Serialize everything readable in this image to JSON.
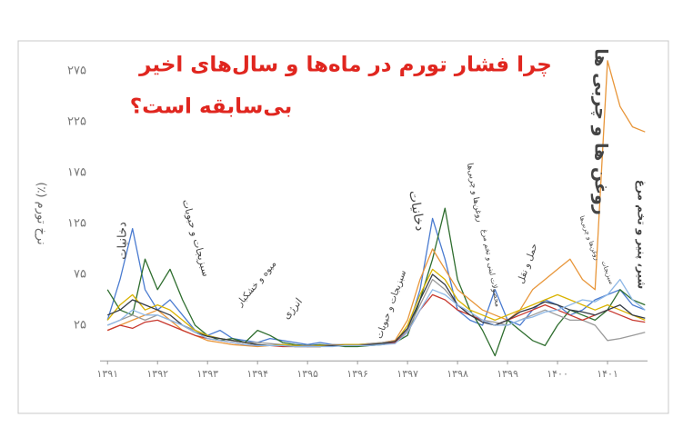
{
  "chart_data": {
    "type": "line",
    "title": [
      "چرا فشار تورم در ماه‌ها و سال‌های اخیر",
      "بی‌سابقه است؟"
    ],
    "ylabel": "نرخ تورم (٪)",
    "annotations": [
      "دخانیات",
      "سبزیجات و حبوبات",
      "میوه و خشکبار",
      "انرژی",
      "سبزیجات و حبوبات",
      "دخانیات",
      "روغن‌ها و چربی‌ها",
      "محصولات لبنی و تخم مرغ",
      "حمل و نقل",
      "روغن‌ها و چربی‌ها",
      "سبزیجات",
      "روغن ها و چربی ها",
      "شیر، پنیر و تخم مرغ"
    ],
    "x": [
      1391,
      1391.25,
      1391.5,
      1391.75,
      1392,
      1392.25,
      1392.5,
      1392.75,
      1393,
      1393.25,
      1393.5,
      1393.75,
      1394,
      1394.25,
      1394.5,
      1394.75,
      1395,
      1395.25,
      1395.5,
      1395.75,
      1396,
      1396.25,
      1396.5,
      1396.75,
      1397,
      1397.25,
      1397.5,
      1397.75,
      1398,
      1398.25,
      1398.5,
      1398.75,
      1399,
      1399.25,
      1399.5,
      1399.75,
      1400,
      1400.25,
      1400.5,
      1400.75,
      1401,
      1401.25,
      1401.5,
      1401.75
    ],
    "series": [
      {
        "color": "#4a7bd0",
        "values": [
          30,
          70,
          120,
          60,
          40,
          50,
          35,
          20,
          15,
          20,
          12,
          10,
          8,
          12,
          10,
          8,
          6,
          8,
          6,
          5,
          5,
          6,
          8,
          10,
          20,
          60,
          130,
          90,
          40,
          30,
          25,
          60,
          30,
          25,
          40,
          50,
          45,
          35,
          40,
          50,
          55,
          60,
          45,
          40
        ]
      },
      {
        "color": "#2f6e2f",
        "values": [
          60,
          40,
          35,
          90,
          60,
          80,
          50,
          25,
          15,
          10,
          12,
          8,
          20,
          15,
          8,
          6,
          5,
          6,
          5,
          4,
          4,
          5,
          6,
          8,
          15,
          50,
          90,
          140,
          70,
          40,
          20,
          -5,
          30,
          20,
          10,
          5,
          25,
          40,
          35,
          30,
          40,
          60,
          50,
          45
        ]
      },
      {
        "color": "#e8963a",
        "values": [
          20,
          25,
          30,
          35,
          40,
          30,
          20,
          15,
          10,
          8,
          6,
          5,
          4,
          5,
          6,
          5,
          4,
          4,
          5,
          6,
          6,
          7,
          8,
          10,
          30,
          70,
          100,
          80,
          60,
          50,
          40,
          35,
          30,
          40,
          60,
          70,
          80,
          90,
          70,
          60,
          285,
          240,
          220,
          215
        ]
      },
      {
        "color": "#9a9a9a",
        "values": [
          25,
          30,
          35,
          30,
          35,
          30,
          25,
          20,
          15,
          12,
          10,
          8,
          8,
          7,
          6,
          5,
          5,
          5,
          6,
          6,
          6,
          7,
          8,
          9,
          20,
          45,
          70,
          60,
          45,
          35,
          30,
          28,
          25,
          30,
          35,
          40,
          35,
          30,
          30,
          25,
          10,
          12,
          15,
          18
        ]
      },
      {
        "color": "#d9b300",
        "values": [
          30,
          45,
          55,
          40,
          45,
          40,
          30,
          20,
          15,
          12,
          10,
          8,
          6,
          5,
          6,
          5,
          4,
          5,
          5,
          6,
          6,
          6,
          7,
          8,
          25,
          55,
          80,
          70,
          50,
          40,
          35,
          30,
          35,
          40,
          45,
          50,
          55,
          50,
          45,
          40,
          45,
          40,
          35,
          30
        ]
      },
      {
        "color": "#c8382e",
        "values": [
          20,
          25,
          22,
          28,
          30,
          25,
          20,
          15,
          12,
          10,
          8,
          6,
          5,
          5,
          4,
          4,
          4,
          4,
          5,
          5,
          5,
          6,
          6,
          8,
          18,
          40,
          55,
          50,
          40,
          35,
          30,
          25,
          30,
          35,
          40,
          45,
          40,
          35,
          30,
          35,
          40,
          35,
          30,
          28
        ]
      },
      {
        "color": "#333a45",
        "values": [
          35,
          40,
          50,
          45,
          40,
          35,
          25,
          18,
          14,
          12,
          10,
          8,
          6,
          5,
          5,
          4,
          4,
          4,
          5,
          5,
          5,
          6,
          7,
          9,
          22,
          50,
          75,
          65,
          45,
          35,
          28,
          25,
          30,
          38,
          42,
          48,
          45,
          40,
          38,
          35,
          40,
          45,
          35,
          32
        ]
      },
      {
        "color": "#8fb8e6",
        "values": [
          25,
          30,
          40,
          35,
          35,
          30,
          25,
          18,
          12,
          10,
          8,
          6,
          5,
          5,
          5,
          4,
          4,
          4,
          4,
          5,
          5,
          5,
          6,
          7,
          18,
          40,
          60,
          55,
          45,
          38,
          30,
          25,
          25,
          30,
          33,
          38,
          40,
          45,
          50,
          48,
          55,
          70,
          50,
          40
        ]
      }
    ],
    "xlim": [
      1390.85,
      1401.8
    ],
    "xticks": [
      {
        "value": 1391,
        "label": "۱۳۹۱"
      },
      {
        "value": 1392,
        "label": "۱۳۹۲"
      },
      {
        "value": 1393,
        "label": "۱۳۹۳"
      },
      {
        "value": 1394,
        "label": "۱۳۹۴"
      },
      {
        "value": 1395,
        "label": "۱۳۹۵"
      },
      {
        "value": 1396,
        "label": "۱۳۹۶"
      },
      {
        "value": 1397,
        "label": "۱۳۹۷"
      },
      {
        "value": 1398,
        "label": "۱۳۹۸"
      },
      {
        "value": 1399,
        "label": "۱۳۹۹"
      },
      {
        "value": 1400,
        "label": "۱۴۰۰"
      },
      {
        "value": 1401,
        "label": "۱۴۰۱"
      }
    ],
    "ylim": [
      -10,
      290
    ],
    "yticks": [
      {
        "value": 25,
        "label": "۲۵"
      },
      {
        "value": 75,
        "label": "۷۵"
      },
      {
        "value": 125,
        "label": "۱۲۵"
      },
      {
        "value": 175,
        "label": "۱۷۵"
      },
      {
        "value": 225,
        "label": "۲۲۵"
      },
      {
        "value": 275,
        "label": "۲۷۵"
      }
    ]
  }
}
